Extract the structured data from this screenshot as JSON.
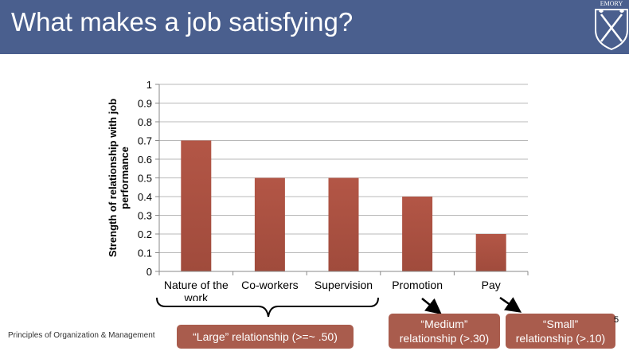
{
  "slide": {
    "title": "What makes a job satisfying?",
    "footer": "Principles of Organization & Management",
    "page_number": "5"
  },
  "colors": {
    "banner": "#4a5f8e",
    "bar": "#a04b3c",
    "callout": "#a95c4d"
  },
  "logo": {
    "icon": "shield-crossed-torches-icon",
    "lettering": "EMORY"
  },
  "callouts": {
    "large": "“Large” relationship (>=~ .50)",
    "medium_line1": "“Medium”",
    "medium_line2": "relationship (>.30)",
    "small_line1": "“Small”",
    "small_line2": "relationship (>.10)"
  },
  "chart_data": {
    "type": "bar",
    "categories": [
      "Nature of the work",
      "Co-workers",
      "Supervision",
      "Promotion",
      "Pay"
    ],
    "category_label_lines": [
      [
        "Nature of the",
        "work"
      ],
      [
        "Co-workers"
      ],
      [
        "Supervision"
      ],
      [
        "Promotion"
      ],
      [
        "Pay"
      ]
    ],
    "values": [
      0.7,
      0.5,
      0.5,
      0.4,
      0.2
    ],
    "ylabel_lines": [
      "Strength of relationship with job",
      "performance"
    ],
    "xlabel": "",
    "ylim": [
      0,
      1
    ],
    "yticks": [
      "0",
      "0.1",
      "0.2",
      "0.3",
      "0.4",
      "0.5",
      "0.6",
      "0.7",
      "0.8",
      "0.9",
      "1"
    ],
    "grid": true,
    "legend": "none"
  }
}
